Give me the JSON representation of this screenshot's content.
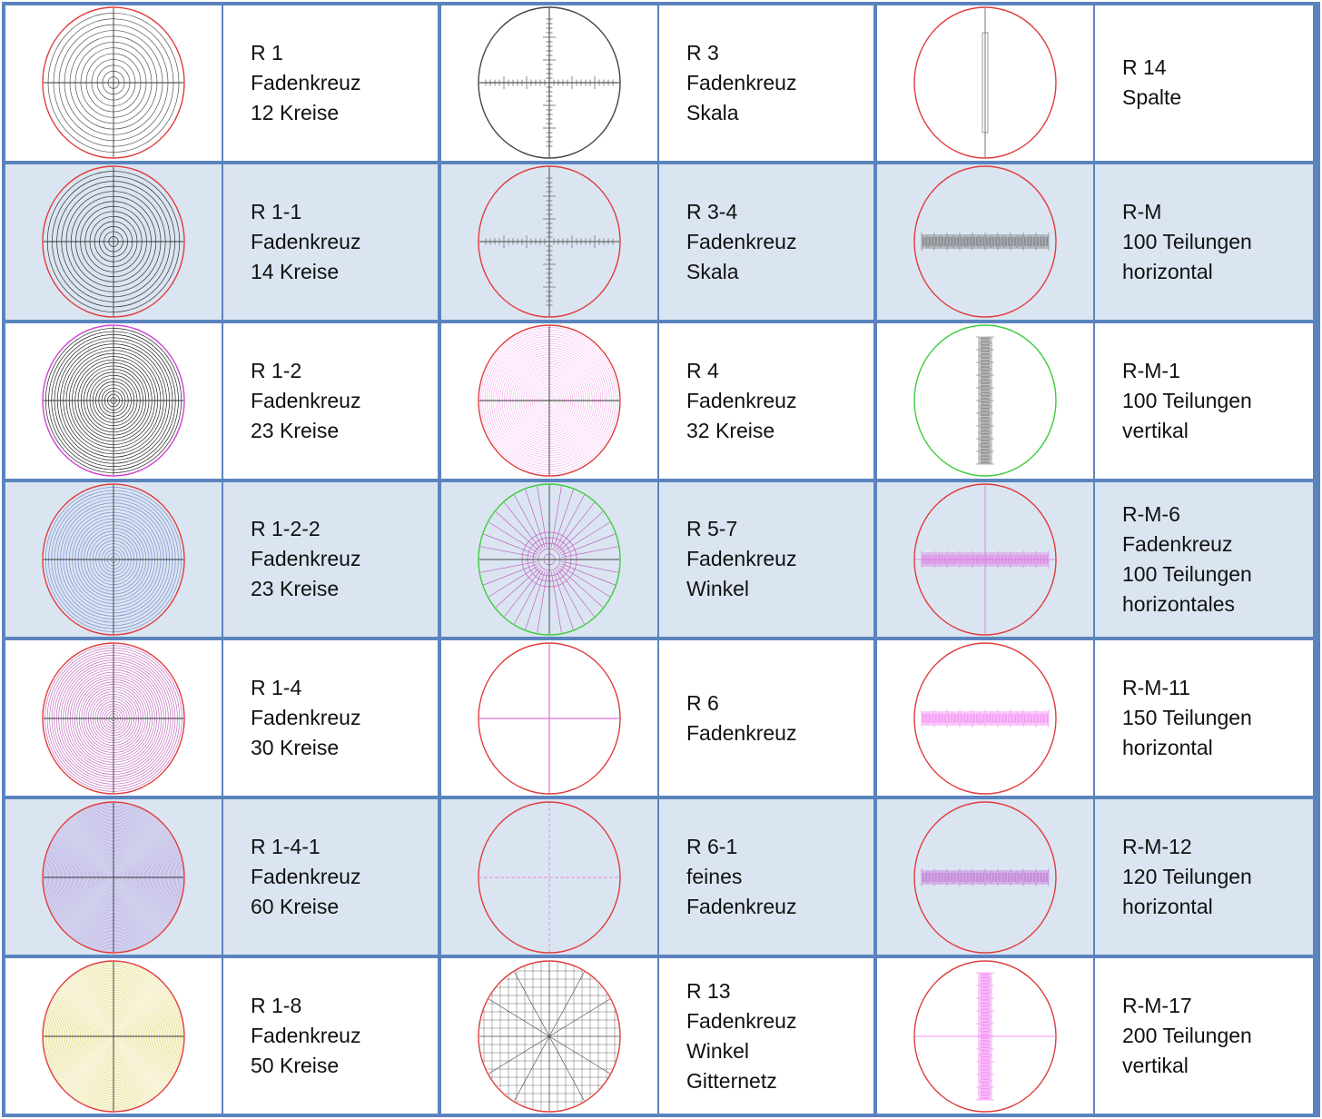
{
  "items": [
    {
      "code": "R 1",
      "lines": [
        "Fadenkreuz",
        "12 Kreise"
      ],
      "ring_color": "#e03c3c",
      "pattern": "circles",
      "pattern_color": "#555555",
      "count": 12
    },
    {
      "code": "R 3",
      "lines": [
        "Fadenkreuz",
        "Skala"
      ],
      "ring_color": "#444444",
      "pattern": "scale-cross",
      "pattern_color": "#555555"
    },
    {
      "code": "R 14",
      "lines": [
        "Spalte"
      ],
      "ring_color": "#e03c3c",
      "pattern": "slit",
      "pattern_color": "#555555"
    },
    {
      "code": "R 1-1",
      "lines": [
        "Fadenkreuz",
        "14 Kreise"
      ],
      "ring_color": "#e03c3c",
      "pattern": "circles",
      "pattern_color": "#333333",
      "count": 14
    },
    {
      "code": "R 3-4",
      "lines": [
        "Fadenkreuz",
        "Skala"
      ],
      "ring_color": "#e03c3c",
      "pattern": "scale-cross-quad",
      "pattern_color": "#666666"
    },
    {
      "code": "R-M",
      "lines": [
        "100 Teilungen",
        "horizontal"
      ],
      "ring_color": "#e03c3c",
      "pattern": "hscale",
      "pattern_color": "#666666"
    },
    {
      "code": "R 1-2",
      "lines": [
        "Fadenkreuz",
        "23 Kreise"
      ],
      "ring_color": "#d040d0",
      "pattern": "circles",
      "pattern_color": "#222222",
      "count": 23
    },
    {
      "code": "R 4",
      "lines": [
        "Fadenkreuz",
        "32 Kreise"
      ],
      "ring_color": "#e03c3c",
      "pattern": "circles",
      "pattern_color": "#f08ce8",
      "count": 32
    },
    {
      "code": "R-M-1",
      "lines": [
        "100 Teilungen",
        "vertikal"
      ],
      "ring_color": "#3ccc3c",
      "pattern": "vscale",
      "pattern_color": "#666666"
    },
    {
      "code": "R 1-2-2",
      "lines": [
        "Fadenkreuz",
        "23 Kreise"
      ],
      "ring_color": "#e03c3c",
      "pattern": "circles",
      "pattern_color": "#7a8fd0",
      "count": 23
    },
    {
      "code": "R 5-7",
      "lines": [
        "Fadenkreuz",
        "Winkel"
      ],
      "ring_color": "#3ccc3c",
      "pattern": "angles",
      "pattern_color": "#c060c0"
    },
    {
      "code": "R-M-6",
      "lines": [
        "Fadenkreuz",
        "100 Teilungen",
        "horizontales"
      ],
      "ring_color": "#e03c3c",
      "pattern": "hscale-cross",
      "pattern_color": "#e070e0"
    },
    {
      "code": "R 1-4",
      "lines": [
        "Fadenkreuz",
        "30 Kreise"
      ],
      "ring_color": "#e03c3c",
      "pattern": "circles",
      "pattern_color": "#c070c0",
      "count": 30
    },
    {
      "code": "R 6",
      "lines": [
        "Fadenkreuz"
      ],
      "ring_color": "#e03c3c",
      "pattern": "cross",
      "pattern_color": "#e070e0"
    },
    {
      "code": "R-M-11",
      "lines": [
        "150 Teilungen",
        "horizontal"
      ],
      "ring_color": "#e03c3c",
      "pattern": "hscale",
      "pattern_color": "#f070f0"
    },
    {
      "code": "R 1-4-1",
      "lines": [
        "Fadenkreuz",
        "60 Kreise"
      ],
      "ring_color": "#e03c3c",
      "pattern": "circles",
      "pattern_color": "#b090e0",
      "count": 60
    },
    {
      "code": "R 6-1",
      "lines": [
        "feines",
        "Fadenkreuz"
      ],
      "ring_color": "#e03c3c",
      "pattern": "fine-cross",
      "pattern_color": "#e070e0"
    },
    {
      "code": "R-M-12",
      "lines": [
        "120 Teilungen",
        "horizontal"
      ],
      "ring_color": "#e03c3c",
      "pattern": "hscale",
      "pattern_color": "#c060d0"
    },
    {
      "code": "R 1-8",
      "lines": [
        "Fadenkreuz",
        "50 Kreise"
      ],
      "ring_color": "#e03c3c",
      "pattern": "circles",
      "pattern_color": "#d8c840",
      "count": 50
    },
    {
      "code": "R 13",
      "lines": [
        "Fadenkreuz",
        "Winkel",
        "Gitternetz"
      ],
      "ring_color": "#e03c3c",
      "pattern": "grid",
      "pattern_color": "#444444"
    },
    {
      "code": "R-M-17",
      "lines": [
        "200 Teilungen",
        "vertikal"
      ],
      "ring_color": "#e03c3c",
      "pattern": "vscale-cross",
      "pattern_color": "#f070f0"
    }
  ]
}
